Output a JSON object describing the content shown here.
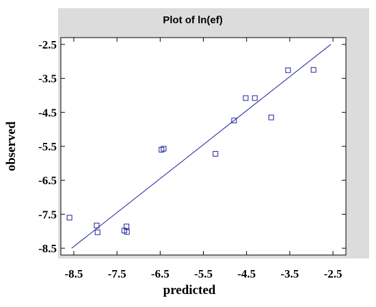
{
  "chart_data": {
    "type": "scatter",
    "title": "Plot of ln(ef)",
    "xlabel": "predicted",
    "ylabel": "observed",
    "xlim": [
      -8.8,
      -2.2
    ],
    "ylim": [
      -8.7,
      -2.3
    ],
    "x_ticks": [
      -8.5,
      -7.5,
      -6.5,
      -5.5,
      -4.5,
      -3.5,
      -2.5
    ],
    "y_ticks": [
      -2.5,
      -3.5,
      -4.5,
      -5.5,
      -6.5,
      -7.5,
      -8.5
    ],
    "x_tick_labels": [
      "-8.5",
      "-7.5",
      "-6.5",
      "-5.5",
      "-4.5",
      "-3.5",
      "-2.5"
    ],
    "y_tick_labels": [
      "-2.5",
      "-3.5",
      "-4.5",
      "-5.5",
      "-6.5",
      "-7.5",
      "-8.5"
    ],
    "points": [
      {
        "x": -8.6,
        "y": -7.6
      },
      {
        "x": -7.97,
        "y": -7.83
      },
      {
        "x": -7.95,
        "y": -8.03
      },
      {
        "x": -7.33,
        "y": -7.98
      },
      {
        "x": -7.28,
        "y": -7.86
      },
      {
        "x": -7.27,
        "y": -8.02
      },
      {
        "x": -6.47,
        "y": -5.6
      },
      {
        "x": -6.42,
        "y": -5.57
      },
      {
        "x": -5.22,
        "y": -5.72
      },
      {
        "x": -4.79,
        "y": -4.74
      },
      {
        "x": -4.52,
        "y": -4.08
      },
      {
        "x": -4.31,
        "y": -4.08
      },
      {
        "x": -3.93,
        "y": -4.65
      },
      {
        "x": -3.54,
        "y": -3.26
      },
      {
        "x": -2.95,
        "y": -3.25
      }
    ],
    "fit_line": {
      "x": [
        -8.55,
        -2.55
      ],
      "y": [
        -8.5,
        -2.5
      ]
    },
    "grid": false,
    "colors": {
      "marker": "#1f1f9f",
      "line": "#1f1f9f",
      "frame_background": "#dcdcdc",
      "plot_background": "#ffffff"
    }
  }
}
